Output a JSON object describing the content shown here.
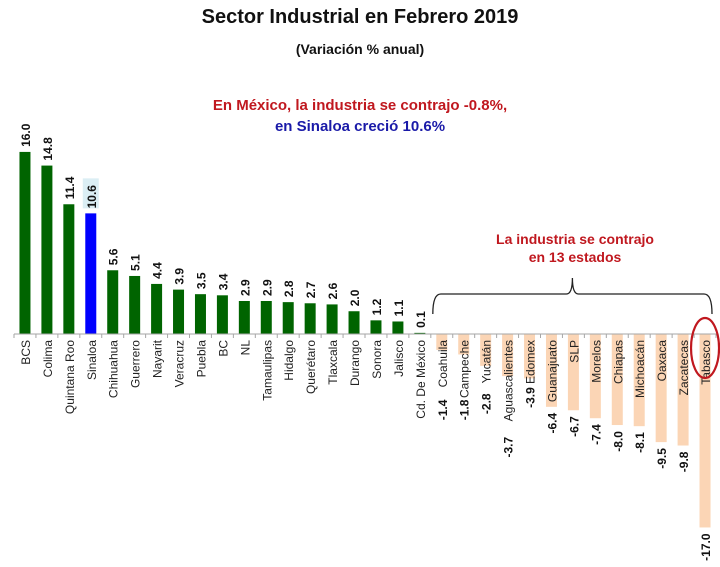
{
  "chart_data": {
    "type": "bar",
    "title": "Sector Industrial en Febrero 2019",
    "subtitle": "(Variación % anual)",
    "xlabel": "",
    "ylabel": "",
    "grid": false,
    "legend": "none",
    "ylim": [
      -17.0,
      16.0
    ],
    "annotations": {
      "mexico_note": "En México,  la industria  se contrajo  -0.8%,",
      "sinaloa_note": "en Sinaloa  creció  10.6%",
      "contraction_note_line1": "La industria se contrajo",
      "contraction_note_line2": "en 13 estados",
      "highlighted_state": "Tabasco"
    },
    "colors": {
      "positive": "#006400",
      "highlight": "#0000ff",
      "negative": "#fbd5b5",
      "highlight_label_bg": "#dbeef4",
      "ellipse": "#c0181f",
      "axis": "#a6a6a6"
    },
    "categories": [
      "BCS",
      "Colima",
      "Quintana Roo",
      "Sinaloa",
      "Chihuahua",
      "Guerrero",
      "Nayarit",
      "Veracruz",
      "Puebla",
      "BC",
      "NL",
      "Tamaulipas",
      "Hidalgo",
      "Querétaro",
      "Tlaxcala",
      "Durango",
      "Sonora",
      "Jalisco",
      "Cd. De México",
      "Coahuila",
      "Campeche",
      "Yucatán",
      "Aguascalientes",
      "Edomex",
      "Guanajuato",
      "SLP",
      "Morelos",
      "Chiapas",
      "Michoacán",
      "Oaxaca",
      "Zacatecas",
      "Tabasco"
    ],
    "values": [
      16.0,
      14.8,
      11.4,
      10.6,
      5.6,
      5.1,
      4.4,
      3.9,
      3.5,
      3.4,
      2.9,
      2.9,
      2.8,
      2.7,
      2.6,
      2.0,
      1.2,
      1.1,
      0.1,
      -1.4,
      -1.8,
      -2.8,
      -3.7,
      -3.9,
      -6.4,
      -6.7,
      -7.4,
      -8.0,
      -8.1,
      -9.5,
      -9.8,
      -17.0
    ],
    "value_labels": [
      "16.0",
      "14.8",
      "11.4",
      "10.6",
      "5.6",
      "5.1",
      "4.4",
      "3.9",
      "3.5",
      "3.4",
      "2.9",
      "2.9",
      "2.8",
      "2.7",
      "2.6",
      "2.0",
      "1.2",
      "1.1",
      "0.1",
      "-1.4",
      "-1.8",
      "-2.8",
      "-3.7",
      "-3.9",
      "-6.4",
      "-6.7",
      "-7.4",
      "-8.0",
      "-8.1",
      "-9.5",
      "-9.8",
      "-17.0"
    ]
  }
}
